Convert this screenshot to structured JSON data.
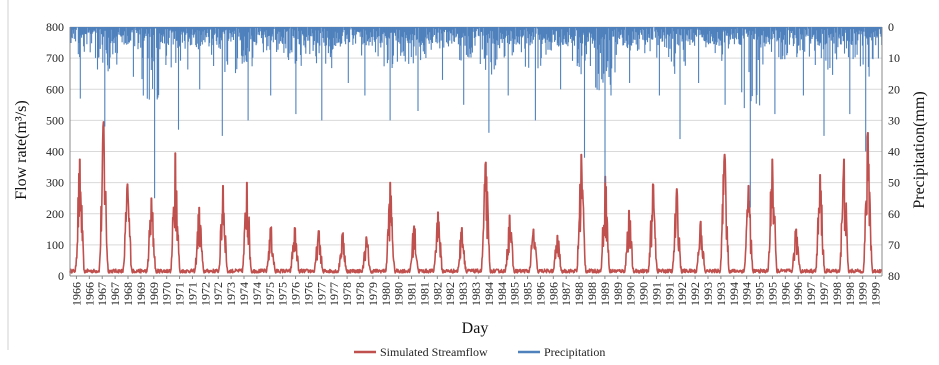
{
  "chart_data": {
    "type": "line",
    "xlabel": "Day",
    "ylabel_left": "Flow rate(m³/s)",
    "ylabel_right": "Precipitation(mm)",
    "y_left_range": [
      0,
      800
    ],
    "y_left_ticks": [
      0,
      100,
      200,
      300,
      400,
      500,
      600,
      700,
      800
    ],
    "y_right_range": [
      0,
      80
    ],
    "y_right_inverted": true,
    "y_right_ticks": [
      0,
      10,
      20,
      30,
      40,
      50,
      60,
      70,
      80
    ],
    "x_tick_labels": [
      "1966",
      "1966",
      "1967",
      "1967",
      "1968",
      "1969",
      "1969",
      "1970",
      "1971",
      "1971",
      "1972",
      "1972",
      "1973",
      "1974",
      "1974",
      "1975",
      "1975",
      "1976",
      "1976",
      "1977",
      "1977",
      "1978",
      "1978",
      "1979",
      "1980",
      "1980",
      "1981",
      "1981",
      "1982",
      "1982",
      "1983",
      "1983",
      "1984",
      "1984",
      "1985",
      "1985",
      "1986",
      "1986",
      "1987",
      "1988",
      "1988",
      "1989",
      "1989",
      "1990",
      "1990",
      "1991",
      "1991",
      "1992",
      "1992",
      "1993",
      "1993",
      "1994",
      "1994",
      "1995",
      "1995",
      "1996",
      "1996",
      "1997",
      "1997",
      "1998",
      "1998",
      "1999",
      "1999"
    ],
    "grid": true,
    "legend_position": "bottom-center",
    "series": [
      {
        "name": "Simulated Streamflow",
        "color": "#c0504d",
        "axis": "left",
        "annual_peaks": [
          {
            "year": 1966,
            "peak": 375
          },
          {
            "year": 1967,
            "peak": 495
          },
          {
            "year": 1968,
            "peak": 295
          },
          {
            "year": 1969,
            "peak": 250
          },
          {
            "year": 1970,
            "peak": 395
          },
          {
            "year": 1971,
            "peak": 220
          },
          {
            "year": 1972,
            "peak": 290
          },
          {
            "year": 1973,
            "peak": 300
          },
          {
            "year": 1974,
            "peak": 155
          },
          {
            "year": 1975,
            "peak": 155
          },
          {
            "year": 1976,
            "peak": 145
          },
          {
            "year": 1977,
            "peak": 135
          },
          {
            "year": 1978,
            "peak": 125
          },
          {
            "year": 1979,
            "peak": 300
          },
          {
            "year": 1980,
            "peak": 160
          },
          {
            "year": 1981,
            "peak": 205
          },
          {
            "year": 1982,
            "peak": 155
          },
          {
            "year": 1983,
            "peak": 365
          },
          {
            "year": 1984,
            "peak": 195
          },
          {
            "year": 1985,
            "peak": 150
          },
          {
            "year": 1986,
            "peak": 130
          },
          {
            "year": 1987,
            "peak": 390
          },
          {
            "year": 1988,
            "peak": 320
          },
          {
            "year": 1989,
            "peak": 210
          },
          {
            "year": 1990,
            "peak": 295
          },
          {
            "year": 1991,
            "peak": 280
          },
          {
            "year": 1992,
            "peak": 175
          },
          {
            "year": 1993,
            "peak": 390
          },
          {
            "year": 1994,
            "peak": 290
          },
          {
            "year": 1995,
            "peak": 375
          },
          {
            "year": 1996,
            "peak": 150
          },
          {
            "year": 1997,
            "peak": 325
          },
          {
            "year": 1998,
            "peak": 375
          },
          {
            "year": 1999,
            "peak": 460
          }
        ]
      },
      {
        "name": "Precipitation",
        "color": "#4f81bd",
        "axis": "right",
        "annual_max": [
          {
            "year": 1966,
            "max": 23
          },
          {
            "year": 1967,
            "max": 32
          },
          {
            "year": 1968,
            "max": 16
          },
          {
            "year": 1969,
            "max": 55
          },
          {
            "year": 1970,
            "max": 33
          },
          {
            "year": 1971,
            "max": 20
          },
          {
            "year": 1972,
            "max": 35
          },
          {
            "year": 1973,
            "max": 30
          },
          {
            "year": 1974,
            "max": 22
          },
          {
            "year": 1975,
            "max": 28
          },
          {
            "year": 1976,
            "max": 30
          },
          {
            "year": 1977,
            "max": 18
          },
          {
            "year": 1978,
            "max": 22
          },
          {
            "year": 1979,
            "max": 30
          },
          {
            "year": 1980,
            "max": 27
          },
          {
            "year": 1981,
            "max": 17
          },
          {
            "year": 1982,
            "max": 25
          },
          {
            "year": 1983,
            "max": 34
          },
          {
            "year": 1984,
            "max": 22
          },
          {
            "year": 1985,
            "max": 30
          },
          {
            "year": 1986,
            "max": 20
          },
          {
            "year": 1987,
            "max": 42
          },
          {
            "year": 1988,
            "max": 50
          },
          {
            "year": 1989,
            "max": 18
          },
          {
            "year": 1990,
            "max": 22
          },
          {
            "year": 1991,
            "max": 36
          },
          {
            "year": 1992,
            "max": 18
          },
          {
            "year": 1993,
            "max": 25
          },
          {
            "year": 1994,
            "max": 58
          },
          {
            "year": 1995,
            "max": 28
          },
          {
            "year": 1996,
            "max": 22
          },
          {
            "year": 1997,
            "max": 35
          },
          {
            "year": 1998,
            "max": 28
          },
          {
            "year": 1999,
            "max": 40
          }
        ]
      }
    ]
  }
}
